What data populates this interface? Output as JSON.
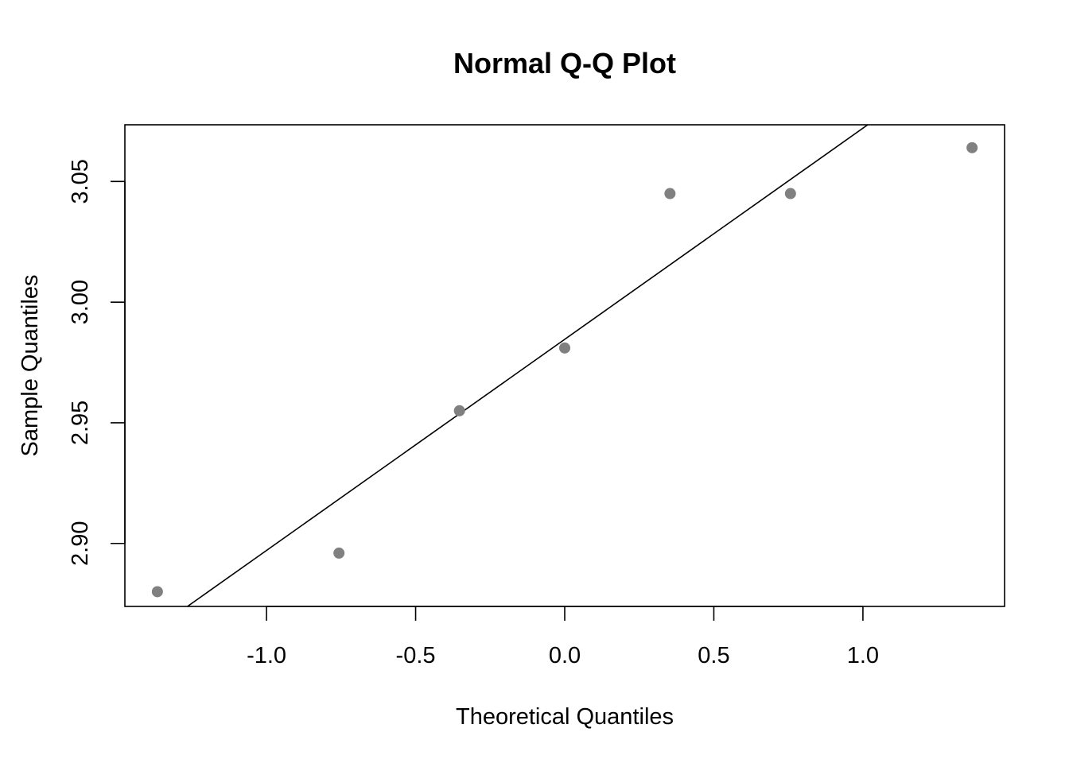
{
  "chart_data": {
    "type": "scatter",
    "title": "Normal Q-Q Plot",
    "xlabel": "Theoretical Quantiles",
    "ylabel": "Sample Quantiles",
    "xlim": [
      -1.475,
      1.475
    ],
    "ylim": [
      2.8739,
      3.0735
    ],
    "x_ticks": [
      -1.0,
      -0.5,
      0.0,
      0.5,
      1.0
    ],
    "x_tick_labels": [
      "-1.0",
      "-0.5",
      "0.0",
      "0.5",
      "1.0"
    ],
    "y_ticks": [
      2.9,
      2.95,
      3.0,
      3.05
    ],
    "y_tick_labels": [
      "2.90",
      "2.95",
      "3.00",
      "3.05"
    ],
    "grid": false,
    "point_color": "#808080",
    "line_color": "#000000",
    "series": [
      {
        "x": [
          -1.366,
          -0.757,
          -0.353,
          0.0,
          0.353,
          0.757,
          1.366
        ],
        "y": [
          2.88,
          2.896,
          2.955,
          2.981,
          3.045,
          3.045,
          3.064
        ]
      }
    ],
    "reference_line": {
      "intercept": 2.9846,
      "slope": 0.0875
    }
  }
}
